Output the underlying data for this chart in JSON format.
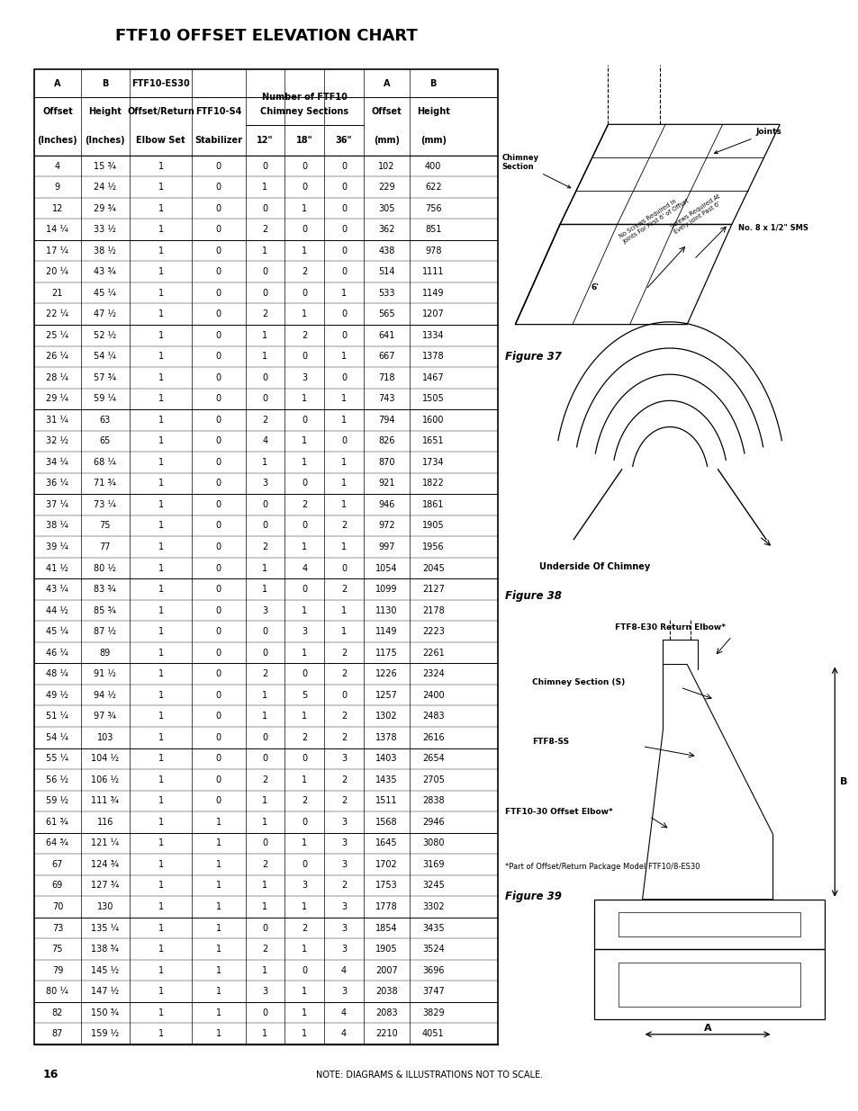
{
  "title": "FTF10 OFFSET ELEVATION CHART",
  "rows": [
    [
      "4",
      "15 ¾",
      "1",
      "0",
      "0",
      "0",
      "0",
      "102",
      "400"
    ],
    [
      "9",
      "24 ½",
      "1",
      "0",
      "1",
      "0",
      "0",
      "229",
      "622"
    ],
    [
      "12",
      "29 ¾",
      "1",
      "0",
      "0",
      "1",
      "0",
      "305",
      "756"
    ],
    [
      "14 ¼",
      "33 ½",
      "1",
      "0",
      "2",
      "0",
      "0",
      "362",
      "851"
    ],
    [
      "17 ¼",
      "38 ½",
      "1",
      "0",
      "1",
      "1",
      "0",
      "438",
      "978"
    ],
    [
      "20 ¼",
      "43 ¾",
      "1",
      "0",
      "0",
      "2",
      "0",
      "514",
      "1111"
    ],
    [
      "21",
      "45 ¼",
      "1",
      "0",
      "0",
      "0",
      "1",
      "533",
      "1149"
    ],
    [
      "22 ¼",
      "47 ½",
      "1",
      "0",
      "2",
      "1",
      "0",
      "565",
      "1207"
    ],
    [
      "25 ¼",
      "52 ½",
      "1",
      "0",
      "1",
      "2",
      "0",
      "641",
      "1334"
    ],
    [
      "26 ¼",
      "54 ¼",
      "1",
      "0",
      "1",
      "0",
      "1",
      "667",
      "1378"
    ],
    [
      "28 ¼",
      "57 ¾",
      "1",
      "0",
      "0",
      "3",
      "0",
      "718",
      "1467"
    ],
    [
      "29 ¼",
      "59 ¼",
      "1",
      "0",
      "0",
      "1",
      "1",
      "743",
      "1505"
    ],
    [
      "31 ¼",
      "63",
      "1",
      "0",
      "2",
      "0",
      "1",
      "794",
      "1600"
    ],
    [
      "32 ½",
      "65",
      "1",
      "0",
      "4",
      "1",
      "0",
      "826",
      "1651"
    ],
    [
      "34 ¼",
      "68 ¼",
      "1",
      "0",
      "1",
      "1",
      "1",
      "870",
      "1734"
    ],
    [
      "36 ¼",
      "71 ¾",
      "1",
      "0",
      "3",
      "0",
      "1",
      "921",
      "1822"
    ],
    [
      "37 ¼",
      "73 ¼",
      "1",
      "0",
      "0",
      "2",
      "1",
      "946",
      "1861"
    ],
    [
      "38 ¼",
      "75",
      "1",
      "0",
      "0",
      "0",
      "2",
      "972",
      "1905"
    ],
    [
      "39 ¼",
      "77",
      "1",
      "0",
      "2",
      "1",
      "1",
      "997",
      "1956"
    ],
    [
      "41 ½",
      "80 ½",
      "1",
      "0",
      "1",
      "4",
      "0",
      "1054",
      "2045"
    ],
    [
      "43 ¼",
      "83 ¾",
      "1",
      "0",
      "1",
      "0",
      "2",
      "1099",
      "2127"
    ],
    [
      "44 ½",
      "85 ¾",
      "1",
      "0",
      "3",
      "1",
      "1",
      "1130",
      "2178"
    ],
    [
      "45 ¼",
      "87 ½",
      "1",
      "0",
      "0",
      "3",
      "1",
      "1149",
      "2223"
    ],
    [
      "46 ¼",
      "89",
      "1",
      "0",
      "0",
      "1",
      "2",
      "1175",
      "2261"
    ],
    [
      "48 ¼",
      "91 ½",
      "1",
      "0",
      "2",
      "0",
      "2",
      "1226",
      "2324"
    ],
    [
      "49 ½",
      "94 ½",
      "1",
      "0",
      "1",
      "5",
      "0",
      "1257",
      "2400"
    ],
    [
      "51 ¼",
      "97 ¾",
      "1",
      "0",
      "1",
      "1",
      "2",
      "1302",
      "2483"
    ],
    [
      "54 ¼",
      "103",
      "1",
      "0",
      "0",
      "2",
      "2",
      "1378",
      "2616"
    ],
    [
      "55 ¼",
      "104 ½",
      "1",
      "0",
      "0",
      "0",
      "3",
      "1403",
      "2654"
    ],
    [
      "56 ½",
      "106 ½",
      "1",
      "0",
      "2",
      "1",
      "2",
      "1435",
      "2705"
    ],
    [
      "59 ½",
      "111 ¾",
      "1",
      "0",
      "1",
      "2",
      "2",
      "1511",
      "2838"
    ],
    [
      "61 ¾",
      "116",
      "1",
      "1",
      "1",
      "0",
      "3",
      "1568",
      "2946"
    ],
    [
      "64 ¾",
      "121 ¼",
      "1",
      "1",
      "0",
      "1",
      "3",
      "1645",
      "3080"
    ],
    [
      "67",
      "124 ¾",
      "1",
      "1",
      "2",
      "0",
      "3",
      "1702",
      "3169"
    ],
    [
      "69",
      "127 ¾",
      "1",
      "1",
      "1",
      "3",
      "2",
      "1753",
      "3245"
    ],
    [
      "70",
      "130",
      "1",
      "1",
      "1",
      "1",
      "3",
      "1778",
      "3302"
    ],
    [
      "73",
      "135 ¼",
      "1",
      "1",
      "0",
      "2",
      "3",
      "1854",
      "3435"
    ],
    [
      "75",
      "138 ¾",
      "1",
      "1",
      "2",
      "1",
      "3",
      "1905",
      "3524"
    ],
    [
      "79",
      "145 ½",
      "1",
      "1",
      "1",
      "0",
      "4",
      "2007",
      "3696"
    ],
    [
      "80 ¼",
      "147 ½",
      "1",
      "1",
      "3",
      "1",
      "3",
      "2038",
      "3747"
    ],
    [
      "82",
      "150 ¾",
      "1",
      "1",
      "0",
      "1",
      "4",
      "2083",
      "3829"
    ],
    [
      "87",
      "159 ½",
      "1",
      "1",
      "1",
      "1",
      "4",
      "2210",
      "4051"
    ]
  ],
  "group_borders": [
    4,
    8,
    12,
    16,
    20,
    24,
    28,
    32,
    36,
    40
  ],
  "bg_color": "#ffffff",
  "text_color": "#000000",
  "title_fontsize": 13,
  "table_fontsize": 7.0,
  "header_fontsize": 7.0,
  "page_number": "16",
  "footer_text": "NOTE: DIAGRAMS & ILLUSTRATIONS NOT TO SCALE."
}
